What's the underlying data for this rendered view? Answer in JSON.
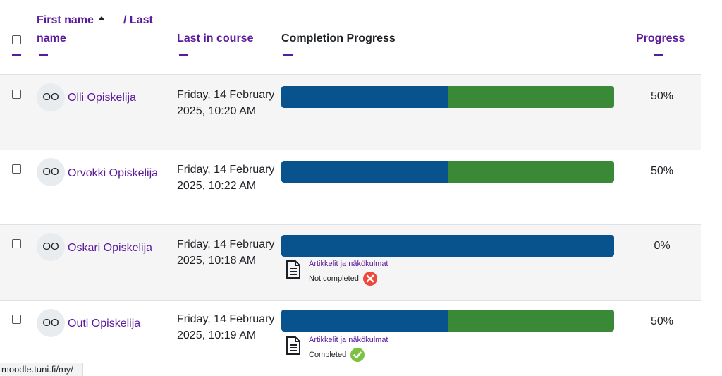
{
  "header": {
    "firstname_label": "First name",
    "lastname_sep": "/ Last",
    "lastname_label": "name",
    "last_in_course_label": "Last in course",
    "completion_progress_label": "Completion Progress",
    "progress_label": "Progress"
  },
  "rows": [
    {
      "initials": "OO",
      "name": "Olli Opiskelija",
      "last_in_course": "Friday, 14 February 2025, 10:20 AM",
      "progress": "50%",
      "progress_fraction": 0.5,
      "segments": [
        "blue",
        "green"
      ]
    },
    {
      "initials": "OO",
      "name": "Orvokki Opiskelija",
      "last_in_course": "Friday, 14 February 2025, 10:22 AM",
      "progress": "50%",
      "progress_fraction": 0.5,
      "segments": [
        "blue",
        "green"
      ]
    },
    {
      "initials": "OO",
      "name": "Oskari Opiskelija",
      "last_in_course": "Friday, 14 February 2025, 10:18 AM",
      "progress": "0%",
      "progress_fraction": 0,
      "segments": [
        "blue",
        "blue"
      ],
      "activity": {
        "name": "Artikkelit ja näkökulmat",
        "status": "Not completed",
        "status_icon": "cross-icon"
      }
    },
    {
      "initials": "OO",
      "name": "Outi Opiskelija",
      "last_in_course": "Friday, 14 February 2025, 10:19 AM",
      "progress": "50%",
      "progress_fraction": 0.5,
      "segments": [
        "blue",
        "green"
      ],
      "activity": {
        "name": "Artikkelit ja näkökulmat",
        "status": "Completed",
        "status_icon": "check-icon"
      }
    }
  ],
  "colors": {
    "submitted": "#08528d",
    "completed": "#3a8937",
    "link": "#5b1a9c",
    "not_completed_icon": "#f0473b",
    "completed_icon": "#7cc242"
  },
  "statusbar": {
    "url": "moodle.tuni.fi/my/"
  }
}
